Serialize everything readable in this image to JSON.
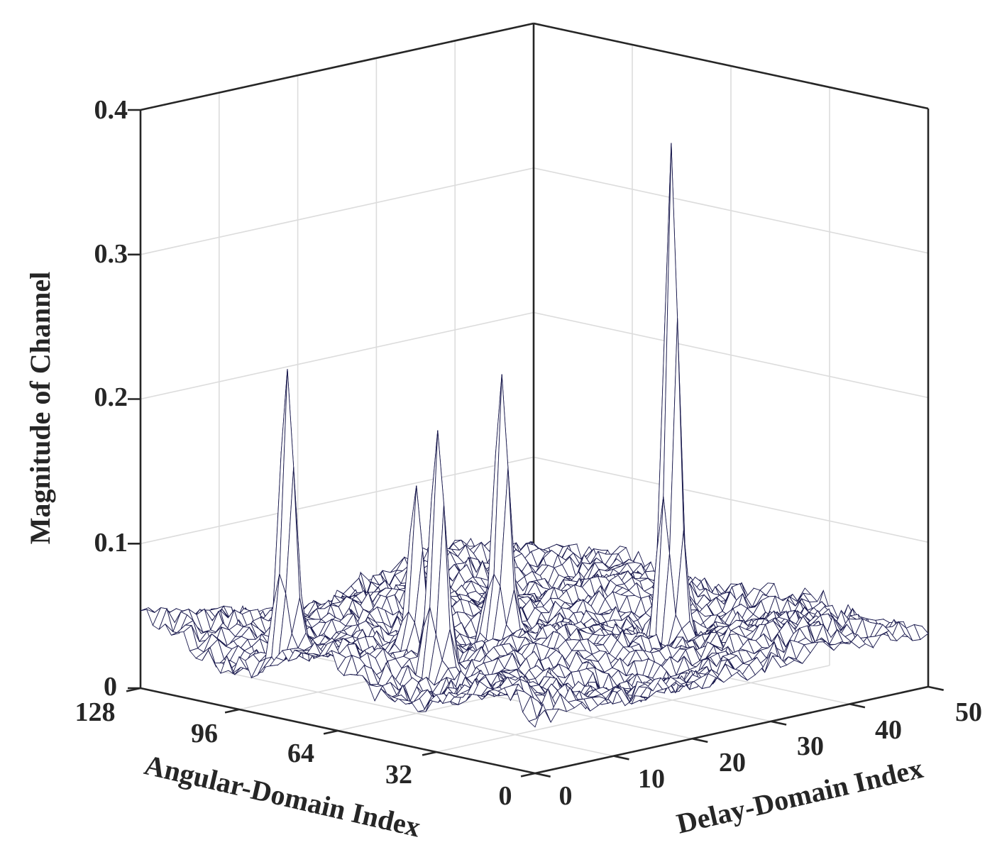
{
  "chart_data": {
    "type": "surface",
    "title": "",
    "xlabel": "Delay-Domain Index",
    "ylabel": "Angular-Domain Index",
    "zlabel": "Magnitude of Channel",
    "xlim": [
      0,
      50
    ],
    "ylim": [
      0,
      128
    ],
    "zlim": [
      0,
      0.4
    ],
    "xticks": [
      "0",
      "10",
      "20",
      "30",
      "40",
      "50"
    ],
    "yticks": [
      "0",
      "32",
      "64",
      "96",
      "128"
    ],
    "zticks": [
      "0",
      "0.1",
      "0.2",
      "0.3",
      "0.4"
    ],
    "grid": true,
    "surface_style": "mesh",
    "mesh_color": "#1a1a4e",
    "noise_floor": 0.04,
    "peaks": [
      {
        "delay": 3,
        "angle": 88,
        "magnitude": 0.2
      },
      {
        "delay": 8,
        "angle": 52,
        "magnitude": 0.16
      },
      {
        "delay": 10,
        "angle": 64,
        "magnitude": 0.12
      },
      {
        "delay": 24,
        "angle": 72,
        "magnitude": 0.18
      },
      {
        "delay": 33,
        "angle": 40,
        "magnitude": 0.34
      }
    ]
  }
}
